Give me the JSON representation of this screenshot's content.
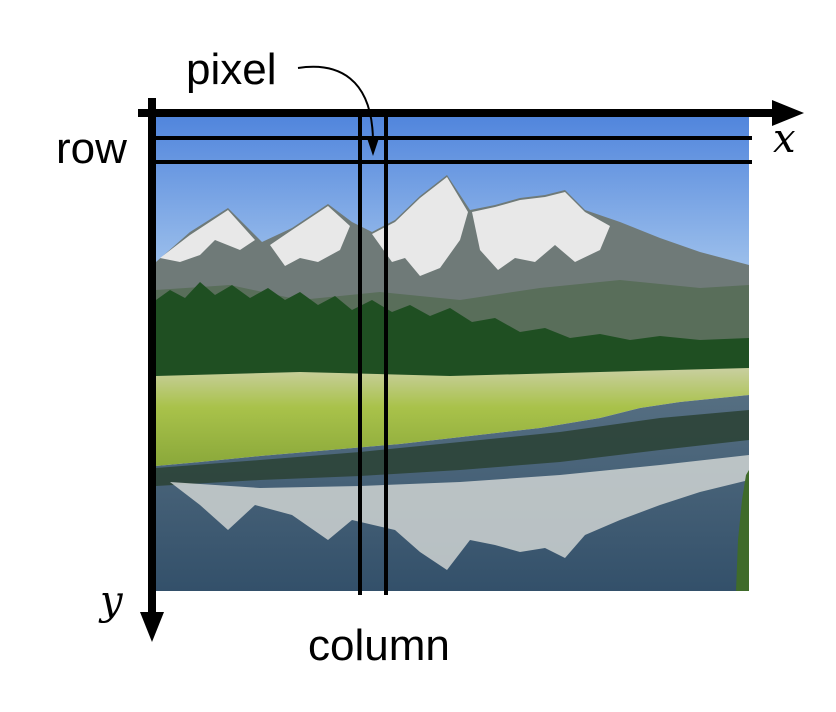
{
  "labels": {
    "pixel": "pixel",
    "row": "row",
    "column": "column",
    "x_axis": "x",
    "y_axis": "y"
  },
  "colors": {
    "sky_top": "#4f84dc",
    "sky_bottom": "#a9c9ee",
    "snow": "#eeeeee",
    "rock": "#6f7a78",
    "forest": "#1f4f22",
    "meadow": "#a9c24a",
    "water": "#3d5a73",
    "ink": "#000000"
  },
  "icons": {
    "photo": "mountain-landscape-photo"
  }
}
